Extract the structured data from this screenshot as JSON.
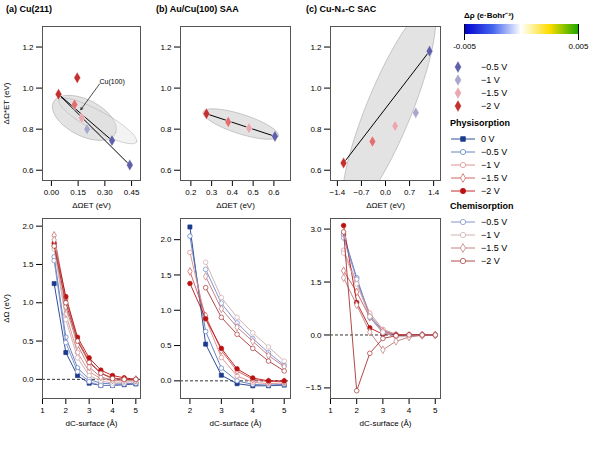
{
  "chart_data": [
    {
      "type": "scatter",
      "title": "(a)",
      "subtitle": "Cu(211)",
      "xlabel": "ΔΩET (eV)",
      "ylabel": "ΔΩ*ET (eV)",
      "xlim": [
        -0.05,
        0.5
      ],
      "ylim": [
        0.55,
        1.3
      ],
      "xticks": [
        {
          "value": 0,
          "label": "0.00"
        },
        0.15,
        {
          "value": 0.3,
          "label": "0.30"
        },
        0.45
      ],
      "yticks": [
        0.6,
        0.8,
        {
          "value": 1,
          "label": "1.0"
        },
        1.2
      ],
      "marker": "diamond",
      "x": [
        0.04,
        0.13,
        0.17,
        0.2,
        0.34,
        0.145,
        0.44
      ],
      "values": [
        0.97,
        0.92,
        0.855,
        0.8,
        0.745,
        1.05,
        0.625
      ],
      "colors": [
        "#c43030",
        "#e07070",
        "#e8a8b0",
        "#a8a8cc",
        "#6060aa",
        "#c43030",
        "#6060aa"
      ],
      "lines": [
        [
          [
            0.04,
            0.97
          ],
          [
            0.34,
            0.745
          ]
        ],
        [
          [
            0.04,
            0.97
          ],
          [
            0.44,
            0.625
          ]
        ]
      ],
      "ellipses": [
        {
          "cx": 0.185,
          "cy": 0.855,
          "w": 0.38,
          "h": 0.18,
          "angle": -22
        },
        {
          "cx": 0.26,
          "cy": 0.84,
          "w": 0.48,
          "h": 0.1,
          "angle": -25
        }
      ],
      "annotations": [
        {
          "text": "Cu(100)",
          "x": 0.27,
          "y": 1.02,
          "arrow_to": [
            0.165,
            0.895
          ]
        }
      ]
    },
    {
      "type": "scatter",
      "title": "(b)",
      "subtitle": "Au/Cu(100) SAA",
      "xlabel": "ΔΩET (eV)",
      "xlim": [
        0.15,
        0.68
      ],
      "ylim": [
        0.55,
        1.3
      ],
      "xticks": [
        0.2,
        0.3,
        0.4,
        0.5,
        0.6
      ],
      "yticks": [
        0.6,
        0.8,
        {
          "value": 1,
          "label": "1.0"
        },
        1.2
      ],
      "marker": "diamond",
      "x": [
        0.275,
        0.38,
        0.48,
        0.605
      ],
      "values": [
        0.875,
        0.835,
        0.805,
        0.765
      ],
      "colors": [
        "#c43030",
        "#e07070",
        "#e8a8b0",
        "#6060aa"
      ],
      "lines": [
        [
          [
            0.275,
            0.875
          ],
          [
            0.605,
            0.765
          ]
        ]
      ],
      "ellipses": [
        {
          "cx": 0.44,
          "cy": 0.825,
          "w": 0.38,
          "h": 0.095,
          "angle": -18
        }
      ],
      "annotations": []
    },
    {
      "type": "scatter",
      "title": "(c)",
      "subtitle": "Cu-N₄-C SAC",
      "xlabel": "ΔΩET (eV)",
      "xlim": [
        -1.6,
        1.6
      ],
      "ylim": [
        0.55,
        1.3
      ],
      "xticks": [
        -1.4,
        -0.7,
        {
          "value": 0,
          "label": "0.0"
        },
        0.7,
        1.4
      ],
      "yticks": [
        0.6,
        0.8,
        {
          "value": 1,
          "label": "1.0"
        },
        1.2
      ],
      "marker": "diamond",
      "x": [
        -1.22,
        -0.38,
        0.28,
        0.88,
        1.28
      ],
      "values": [
        0.635,
        0.74,
        0.815,
        0.88,
        1.18
      ],
      "colors": [
        "#c43030",
        "#e07070",
        "#e8a8b0",
        "#a8a8cc",
        "#6060aa"
      ],
      "lines": [
        [
          [
            -1.22,
            0.635
          ],
          [
            1.28,
            1.18
          ]
        ]
      ],
      "ellipses": [
        {
          "cx": 0.1,
          "cy": 0.895,
          "w": 2.85,
          "h": 0.5,
          "angle": 18
        }
      ],
      "annotations": []
    },
    {
      "type": "line",
      "xlabel": "dC-surface (Å)",
      "ylabel": "ΔΩ (eV)",
      "xlim": [
        1,
        5.2
      ],
      "ylim": [
        -0.25,
        2.1
      ],
      "xticks": [
        1,
        2,
        3,
        4,
        5
      ],
      "yticks": [
        {
          "value": 0,
          "label": "0.0"
        },
        0.5,
        {
          "value": 1,
          "label": "1.0"
        },
        1.5,
        {
          "value": 2,
          "label": "2.0"
        }
      ],
      "hline": 0,
      "series": [
        {
          "name": "0 V",
          "group": "Physisorption",
          "color": "#1a3a8a",
          "marker": "square",
          "x": [
            1.5,
            2.0,
            2.5,
            3.0,
            3.5,
            4.0,
            4.5,
            5.0
          ],
          "values": [
            1.25,
            0.35,
            0.05,
            -0.05,
            -0.08,
            -0.08,
            -0.07,
            -0.06
          ]
        },
        {
          "name": "−0.5 V",
          "group": "Physisorption",
          "color": "#5577bb",
          "marker": "circle-open",
          "x": [
            1.5,
            2.0,
            2.5,
            3.0,
            3.5,
            4.0,
            4.5,
            5.0
          ],
          "values": [
            1.6,
            0.55,
            0.15,
            0.0,
            -0.05,
            -0.06,
            -0.06,
            -0.05
          ]
        },
        {
          "name": "−1 V",
          "group": "Physisorption",
          "color": "#dd8888",
          "marker": "circle-open",
          "x": [
            1.5,
            2.0,
            2.5,
            3.0,
            3.5,
            4.0,
            4.5,
            5.0
          ],
          "values": [
            1.75,
            0.85,
            0.35,
            0.1,
            0.01,
            -0.02,
            -0.02,
            -0.02
          ]
        },
        {
          "name": "−1.5 V",
          "group": "Physisorption",
          "color": "#cc5555",
          "marker": "diamond-open",
          "x": [
            1.5,
            2.0,
            2.5,
            3.0,
            3.5,
            4.0,
            4.5,
            5.0
          ],
          "values": [
            1.88,
            1.05,
            0.52,
            0.24,
            0.08,
            0.02,
            0.0,
            0.0
          ]
        },
        {
          "name": "−2 V",
          "group": "Physisorption",
          "color": "#bb1111",
          "marker": "circle",
          "x": [
            1.5,
            2.0,
            2.5,
            3.0,
            3.5,
            4.0,
            4.5,
            5.0
          ],
          "values": [
            1.78,
            1.08,
            0.55,
            0.28,
            0.12,
            0.05,
            0.02,
            0.0
          ]
        },
        {
          "name": "−0.5 V",
          "group": "Chemisorption",
          "color": "#7788cc",
          "marker": "circle-open",
          "x": [
            1.5,
            2.0,
            2.5,
            3.0,
            3.5,
            4.0,
            4.5,
            5.0
          ],
          "values": [
            1.55,
            0.48,
            0.1,
            -0.03,
            -0.08,
            -0.08,
            -0.06,
            -0.05
          ]
        },
        {
          "name": "−1 V",
          "group": "Chemisorption",
          "color": "#ccaaaa",
          "marker": "circle-open",
          "x": [
            1.5,
            2.0,
            2.5,
            3.0,
            3.5,
            4.0,
            4.5,
            5.0
          ],
          "values": [
            1.7,
            0.78,
            0.28,
            0.05,
            -0.02,
            -0.05,
            -0.04,
            -0.03
          ]
        },
        {
          "name": "−1.5 V",
          "group": "Chemisorption",
          "color": "#bb7777",
          "marker": "diamond-open",
          "x": [
            1.5,
            2.0,
            2.5,
            3.0,
            3.5,
            4.0,
            4.5,
            5.0
          ],
          "values": [
            1.82,
            0.95,
            0.45,
            0.16,
            0.03,
            -0.01,
            -0.01,
            -0.01
          ]
        },
        {
          "name": "−2 V",
          "group": "Chemisorption",
          "color": "#aa3333",
          "marker": "circle-open",
          "x": [
            1.5,
            2.0,
            2.5,
            3.0,
            3.5,
            4.0,
            4.5,
            5.0
          ],
          "values": [
            1.74,
            1.0,
            0.5,
            0.22,
            0.08,
            0.01,
            0.0,
            0.0
          ]
        }
      ]
    },
    {
      "type": "line",
      "xlabel": "dC-surface (Å)",
      "xlim": [
        1.7,
        5.2
      ],
      "ylim": [
        -0.25,
        2.3
      ],
      "xticks": [
        2,
        3,
        4,
        5
      ],
      "yticks": [
        {
          "value": 0,
          "label": "0.0"
        },
        0.5,
        {
          "value": 1,
          "label": "1.0"
        },
        1.5,
        {
          "value": 2,
          "label": "2.0"
        }
      ],
      "hline": 0,
      "series": [
        {
          "name": "0 V",
          "group": "Physisorption",
          "color": "#1a3a8a",
          "marker": "square",
          "x": [
            2.0,
            2.5,
            3.0,
            3.5,
            4.0,
            4.5,
            5.0
          ],
          "values": [
            2.18,
            0.52,
            0.08,
            -0.04,
            -0.07,
            -0.07,
            -0.06
          ]
        },
        {
          "name": "−0.5 V",
          "group": "Physisorption",
          "color": "#5577bb",
          "marker": "circle-open",
          "x": [
            2.0,
            2.5,
            3.0,
            3.5,
            4.0,
            4.5,
            5.0
          ],
          "values": [
            2.05,
            0.7,
            0.18,
            0.0,
            -0.05,
            -0.06,
            -0.05
          ]
        },
        {
          "name": "−1 V",
          "group": "Physisorption",
          "color": "#dd8888",
          "marker": "circle-open",
          "x": [
            2.0,
            2.5,
            3.0,
            3.5,
            4.0,
            4.5,
            5.0
          ],
          "values": [
            1.82,
            0.88,
            0.33,
            0.07,
            -0.02,
            -0.04,
            -0.03
          ]
        },
        {
          "name": "−1.5 V",
          "group": "Physisorption",
          "color": "#cc5555",
          "marker": "diamond-open",
          "x": [
            2.0,
            2.5,
            3.0,
            3.5,
            4.0,
            4.5,
            5.0
          ],
          "values": [
            1.55,
            0.92,
            0.43,
            0.14,
            0.02,
            -0.01,
            -0.01
          ]
        },
        {
          "name": "−2 V",
          "group": "Physisorption",
          "color": "#bb1111",
          "marker": "circle",
          "x": [
            2.0,
            2.5,
            3.0,
            3.5,
            4.0,
            4.5,
            5.0
          ],
          "values": [
            1.38,
            0.88,
            0.46,
            0.17,
            0.04,
            0.0,
            0.0
          ]
        },
        {
          "name": "−0.5 V",
          "group": "Chemisorption",
          "color": "#7788cc",
          "marker": "circle-open",
          "x": [
            2.5,
            3.0,
            3.5,
            4.0,
            4.5,
            5.0
          ],
          "values": [
            1.58,
            1.1,
            0.82,
            0.6,
            0.4,
            0.22
          ]
        },
        {
          "name": "−1 V",
          "group": "Chemisorption",
          "color": "#ccaaaa",
          "marker": "circle-open",
          "x": [
            2.5,
            3.0,
            3.5,
            4.0,
            4.5,
            5.0
          ],
          "values": [
            1.68,
            1.18,
            0.9,
            0.68,
            0.48,
            0.28
          ]
        },
        {
          "name": "−1.5 V",
          "group": "Chemisorption",
          "color": "#bb7777",
          "marker": "diamond-open",
          "x": [
            2.5,
            3.0,
            3.5,
            4.0,
            4.5,
            5.0
          ],
          "values": [
            1.48,
            1.02,
            0.76,
            0.56,
            0.36,
            0.2
          ]
        },
        {
          "name": "−2 V",
          "group": "Chemisorption",
          "color": "#aa3333",
          "marker": "circle-open",
          "x": [
            2.5,
            3.0,
            3.5,
            4.0,
            4.5,
            5.0
          ],
          "values": [
            1.32,
            0.9,
            0.66,
            0.46,
            0.28,
            0.14
          ]
        }
      ]
    },
    {
      "type": "line",
      "xlabel": "dC-surface (Å)",
      "xlim": [
        1,
        5.2
      ],
      "ylim": [
        -1.8,
        3.3
      ],
      "xticks": [
        1,
        2,
        3,
        4,
        5
      ],
      "yticks": [
        -1.5,
        {
          "value": 0,
          "label": "0.0"
        },
        1.5,
        {
          "value": 3,
          "label": "3.0"
        }
      ],
      "hline": 0,
      "series": [
        {
          "name": "−0.5 V",
          "group": "Physisorption",
          "color": "#5577bb",
          "marker": "circle-open",
          "x": [
            1.5,
            2.0,
            2.5,
            3.0,
            3.5,
            4.0,
            4.5,
            5.0
          ],
          "values": [
            2.85,
            1.62,
            0.55,
            0.12,
            0.01,
            0.0,
            0.0,
            0.0
          ]
        },
        {
          "name": "−1 V",
          "group": "Physisorption",
          "color": "#dd8888",
          "marker": "circle-open",
          "x": [
            1.5,
            2.0,
            2.5,
            3.0,
            3.5,
            4.0,
            4.5,
            5.0
          ],
          "values": [
            2.4,
            1.5,
            0.62,
            0.16,
            0.02,
            0.0,
            0.0,
            0.0
          ]
        },
        {
          "name": "−1.5 V",
          "group": "Physisorption",
          "color": "#cc5555",
          "marker": "diamond-open",
          "x": [
            1.5,
            2.0,
            2.5,
            3.0,
            3.5,
            4.0,
            4.5,
            5.0
          ],
          "values": [
            1.82,
            1.22,
            0.5,
            0.1,
            -0.01,
            -0.01,
            0.0,
            0.0
          ]
        },
        {
          "name": "−2 V",
          "group": "Physisorption",
          "color": "#bb1111",
          "marker": "circle",
          "x": [
            1.5,
            2.0,
            2.5,
            3.0,
            3.5,
            4.0,
            4.5,
            5.0
          ],
          "values": [
            3.1,
            0.92,
            0.2,
            0.02,
            0.0,
            0.0,
            0.0,
            0.0
          ]
        },
        {
          "name": "−0.5 V",
          "group": "Chemisorption",
          "color": "#7788cc",
          "marker": "circle-open",
          "x": [
            1.5,
            2.0,
            2.5,
            3.0,
            3.5,
            4.0,
            4.5,
            5.0
          ],
          "values": [
            2.75,
            1.58,
            0.5,
            0.06,
            -0.03,
            -0.01,
            0.0,
            0.0
          ]
        },
        {
          "name": "−1 V",
          "group": "Chemisorption",
          "color": "#ccaaaa",
          "marker": "circle-open",
          "x": [
            1.5,
            2.0,
            2.5,
            3.0,
            3.5,
            4.0,
            4.5,
            5.0
          ],
          "values": [
            2.32,
            1.45,
            0.52,
            0.08,
            -0.06,
            -0.03,
            -0.01,
            0.0
          ]
        },
        {
          "name": "−1.5 V",
          "group": "Chemisorption",
          "color": "#bb7777",
          "marker": "diamond-open",
          "x": [
            1.5,
            2.0,
            2.5,
            3.0,
            3.5,
            4.0,
            4.5,
            5.0
          ],
          "values": [
            1.62,
            0.85,
            0.08,
            -0.42,
            -0.18,
            -0.06,
            -0.01,
            0.0
          ]
        },
        {
          "name": "−2 V",
          "group": "Chemisorption",
          "color": "#aa3333",
          "marker": "circle-open",
          "x": [
            1.5,
            2.0,
            2.5,
            3.0,
            3.5,
            4.0,
            4.5,
            5.0
          ],
          "values": [
            2.92,
            -1.58,
            -0.52,
            -0.1,
            -0.02,
            0.0,
            0.0,
            0.0
          ]
        }
      ]
    },
    {
      "type": "colorbar",
      "label": "Δρ (e·Bohr⁻³)",
      "colors": [
        "#0000cc",
        "#4466ee",
        "#ffffff",
        "#ffdd00",
        "#22aa00"
      ],
      "lim": [
        -0.005,
        0.005
      ],
      "ticks": [
        {
          "value": -0.005,
          "label": "-0.005"
        },
        0.005
      ]
    },
    {
      "type": "legend",
      "series": [
        {
          "name": "−0.5 V",
          "color": "#6060aa",
          "marker": "diamond"
        },
        {
          "name": "−1 V",
          "color": "#a8a8cc",
          "marker": "diamond"
        },
        {
          "name": "−1.5 V",
          "color": "#e8a8b0",
          "marker": "diamond"
        },
        {
          "name": "−2 V",
          "color": "#c43030",
          "marker": "diamond"
        }
      ]
    }
  ]
}
